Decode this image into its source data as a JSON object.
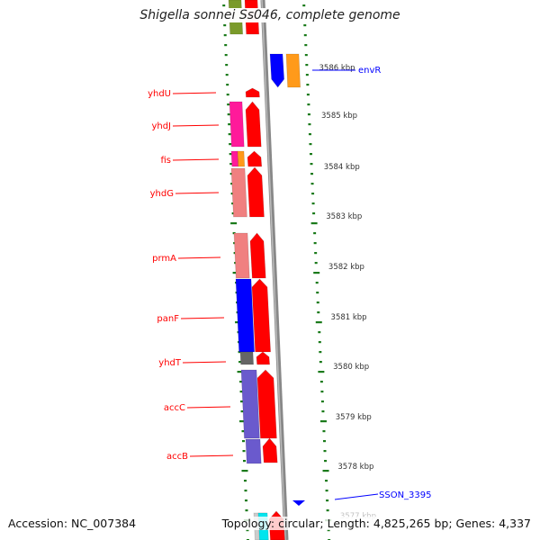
{
  "title": "Shigella sonnei Ss046, complete genome",
  "footer": {
    "accession": "Accession: NC_007384",
    "summary": "Topology: circular; Length: 4,825,265 bp; Genes: 4,337"
  },
  "ticks": [
    "3586 kbp",
    "3585 kbp",
    "3584 kbp",
    "3583 kbp",
    "3582 kbp",
    "3581 kbp",
    "3580 kbp",
    "3579 kbp",
    "3578 kbp",
    "3577 kbp"
  ],
  "genes_left": [
    "yhdU",
    "yhdJ",
    "fis",
    "yhdG",
    "prmA",
    "panF",
    "yhdT",
    "accC",
    "accB"
  ],
  "genes_right": [
    "envR",
    "SSON_3395"
  ],
  "colors": {
    "left_label": "#ff0000",
    "right_label": "#0000ff",
    "track": "#1a7a1a",
    "backbone": "#888888"
  }
}
